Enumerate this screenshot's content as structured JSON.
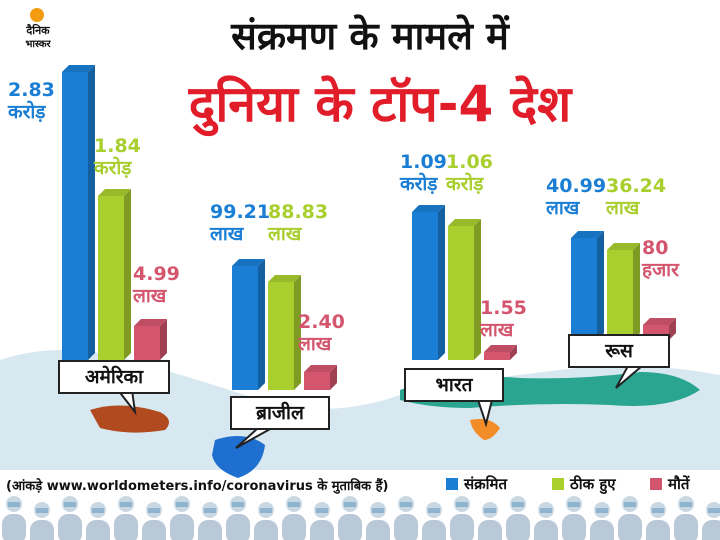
{
  "logo": {
    "line1": "दैनिक",
    "line2": "भास्कर"
  },
  "title_line1": "संक्रमण के मामले में",
  "title_line2": "दुनिया के टॉप-4 देश",
  "source_note": "(आंकड़े www.worldometers.info/coronavirus के मुताबिक हैं)",
  "colors": {
    "infected": "#1a7fd4",
    "recovered": "#a9cf2f",
    "deaths": "#d4566e",
    "title_red": "#e11d2a",
    "map_teal": "#2aa58f"
  },
  "chart_data": {
    "type": "bar",
    "title": "संक्रमण के मामले में दुनिया के टॉप-4 देश",
    "categories": [
      "अमेरिका",
      "ब्राजील",
      "भारत",
      "रूस"
    ],
    "series": [
      {
        "name": "संक्रमित",
        "values": [
          28300000,
          9921000,
          10900000,
          4099000
        ],
        "labels": [
          [
            "2.83",
            "करोड़"
          ],
          [
            "99.21",
            "लाख"
          ],
          [
            "1.09",
            "करोड़"
          ],
          [
            "40.99",
            "लाख"
          ]
        ]
      },
      {
        "name": "ठीक हुए",
        "values": [
          18400000,
          8883000,
          10600000,
          3624000
        ],
        "labels": [
          [
            "1.84",
            "करोड़"
          ],
          [
            "88.83",
            "लाख"
          ],
          [
            "1.06",
            "करोड़"
          ],
          [
            "36.24",
            "लाख"
          ]
        ]
      },
      {
        "name": "मौतें",
        "values": [
          499000,
          240000,
          155000,
          80000
        ],
        "labels": [
          [
            "4.99",
            "लाख"
          ],
          [
            "2.40",
            "लाख"
          ],
          [
            "1.55",
            "लाख"
          ],
          [
            "80",
            "हजार"
          ]
        ]
      }
    ],
    "legend_position": "bottom-right",
    "grid": false
  }
}
